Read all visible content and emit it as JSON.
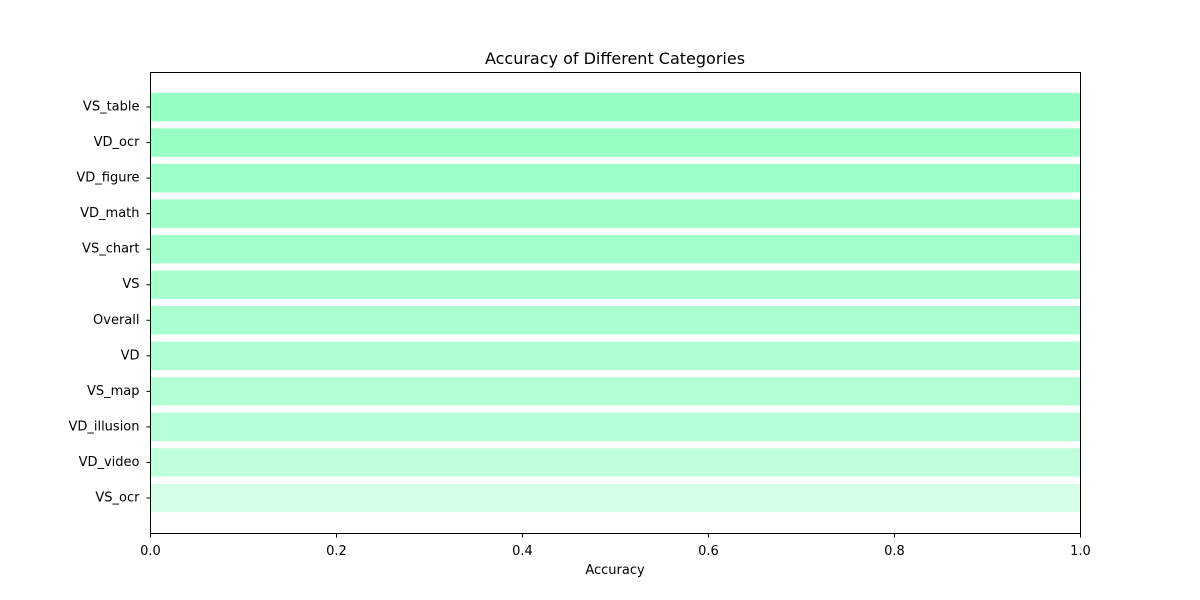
{
  "chart_data": {
    "type": "bar",
    "orientation": "horizontal",
    "title": "Accuracy of Different Categories",
    "xlabel": "Accuracy",
    "ylabel": "",
    "xlim": [
      0,
      1
    ],
    "xticks": [
      "0.0",
      "0.2",
      "0.4",
      "0.6",
      "0.8",
      "1.0"
    ],
    "grid": false,
    "categories": [
      "VS_table",
      "VD_ocr",
      "VD_figure",
      "VD_math",
      "VS_chart",
      "VS",
      "Overall",
      "VD",
      "VS_map",
      "VD_illusion",
      "VD_video",
      "VS_ocr"
    ],
    "values": [
      1.0,
      1.0,
      1.0,
      1.0,
      1.0,
      1.0,
      1.0,
      1.0,
      1.0,
      1.0,
      1.0,
      1.0
    ],
    "colors": [
      "#96ffc4",
      "#98ffc5",
      "#9bffc7",
      "#9fffc9",
      "#a2ffcb",
      "#a6ffcd",
      "#a9ffcf",
      "#adffd1",
      "#b1ffd3",
      "#b6ffd6",
      "#bfffdb",
      "#d4ffe6"
    ]
  }
}
